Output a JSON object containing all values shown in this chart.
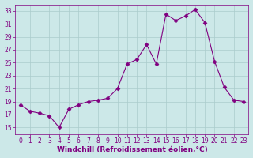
{
  "x": [
    0,
    1,
    2,
    3,
    4,
    5,
    6,
    7,
    8,
    9,
    10,
    11,
    12,
    13,
    14,
    15,
    16,
    17,
    18,
    19,
    20,
    21,
    22,
    23
  ],
  "y": [
    18.5,
    17.5,
    17.2,
    16.8,
    15.0,
    17.8,
    18.5,
    19.0,
    19.2,
    19.5,
    21.0,
    24.8,
    25.5,
    27.8,
    24.8,
    32.5,
    31.5,
    32.2,
    33.2,
    31.2,
    25.2,
    21.2,
    19.2,
    19.0
  ],
  "line_color": "#800080",
  "marker": "D",
  "marker_size": 2.5,
  "bg_color": "#cce8e8",
  "grid_color": "#aacccc",
  "xlabel": "Windchill (Refroidissement éolien,°C)",
  "xlim": [
    -0.5,
    23.5
  ],
  "ylim": [
    14.0,
    34.0
  ],
  "yticks": [
    15,
    17,
    19,
    21,
    23,
    25,
    27,
    29,
    31,
    33
  ],
  "xticks": [
    0,
    1,
    2,
    3,
    4,
    5,
    6,
    7,
    8,
    9,
    10,
    11,
    12,
    13,
    14,
    15,
    16,
    17,
    18,
    19,
    20,
    21,
    22,
    23
  ],
  "tick_color": "#800080",
  "label_color": "#800080",
  "font_size": 5.5,
  "xlabel_font_size": 6.5,
  "xlabel_bold": true
}
